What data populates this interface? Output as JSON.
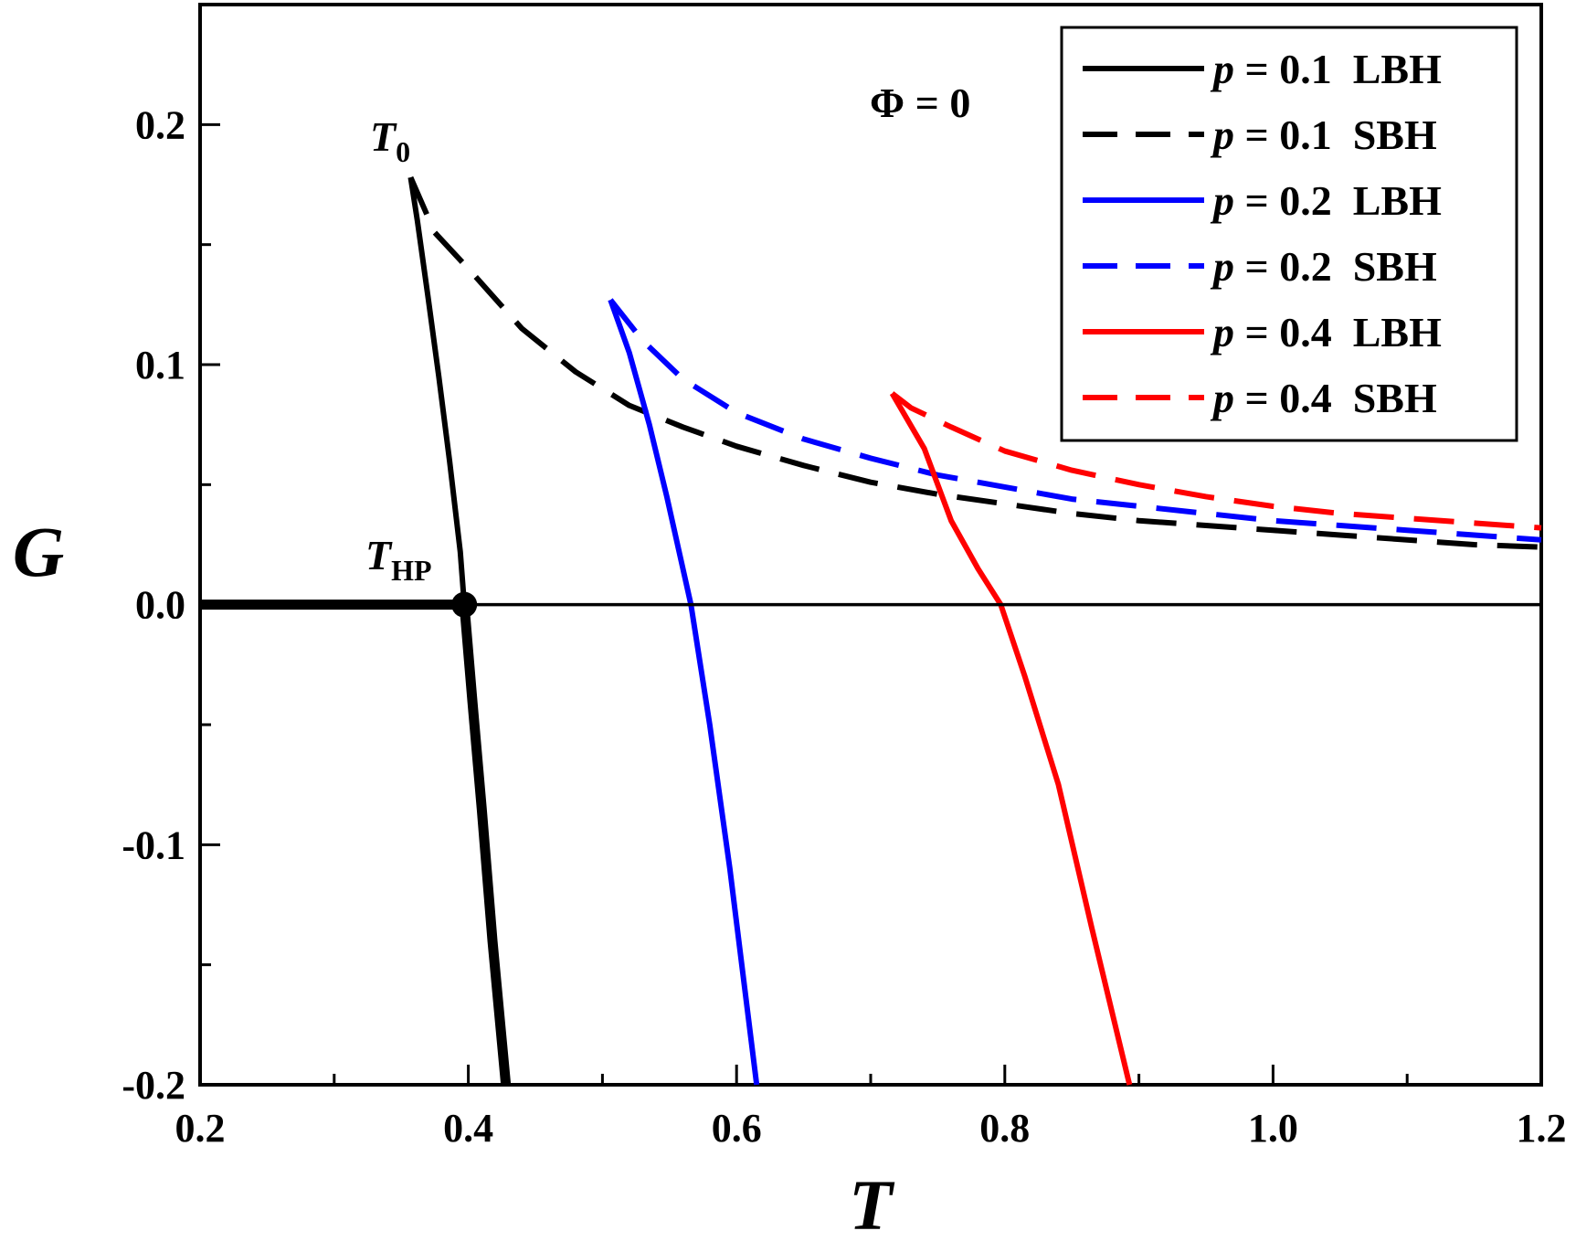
{
  "chart_data": {
    "type": "line",
    "xlabel": "T",
    "ylabel": "G",
    "xlim": [
      0.2,
      1.2
    ],
    "ylim": [
      -0.2,
      0.25
    ],
    "x_ticks": [
      "0.2",
      "0.4",
      "0.6",
      "0.8",
      "1.0",
      "1.2"
    ],
    "x_tick_values": [
      0.2,
      0.4,
      0.6,
      0.8,
      1.0,
      1.2
    ],
    "y_ticks": [
      "-0.2",
      "-0.1",
      "0.0",
      "0.1",
      "0.2"
    ],
    "y_tick_values": [
      -0.2,
      -0.1,
      0.0,
      0.1,
      0.2
    ],
    "grid": false,
    "legend_position": "top-right",
    "annotations": [
      {
        "id": "phi",
        "text": "Φ = 0"
      },
      {
        "id": "t0",
        "main": "T",
        "sub": "0",
        "x": 0.357,
        "y": 0.178
      },
      {
        "id": "thp",
        "main": "T",
        "sub": "HP",
        "x": 0.397,
        "y": 0.0
      }
    ],
    "series": [
      {
        "name": "p = 0.1  LBH",
        "p": "p",
        "label_rest": " = 0.1  LBH",
        "color": "#000000",
        "dash": "solid",
        "x": [
          0.357,
          0.362,
          0.37,
          0.378,
          0.386,
          0.394,
          0.397,
          0.403,
          0.41,
          0.418,
          0.428
        ],
        "y": [
          0.178,
          0.16,
          0.128,
          0.095,
          0.06,
          0.022,
          0.0,
          -0.04,
          -0.085,
          -0.14,
          -0.2
        ]
      },
      {
        "name": "p = 0.1  SBH",
        "p": "p",
        "label_rest": " = 0.1  SBH",
        "color": "#000000",
        "dash": "dashed",
        "x": [
          0.357,
          0.375,
          0.4,
          0.44,
          0.48,
          0.52,
          0.56,
          0.6,
          0.65,
          0.7,
          0.75,
          0.8,
          0.85,
          0.9,
          0.95,
          1.0,
          1.05,
          1.1,
          1.15,
          1.2
        ],
        "y": [
          0.178,
          0.155,
          0.14,
          0.115,
          0.097,
          0.083,
          0.074,
          0.066,
          0.058,
          0.051,
          0.046,
          0.042,
          0.038,
          0.035,
          0.033,
          0.031,
          0.029,
          0.027,
          0.025,
          0.024
        ]
      },
      {
        "name": "p = 0.2  LBH",
        "p": "p",
        "label_rest": " = 0.2  LBH",
        "color": "#0000ff",
        "dash": "solid",
        "x": [
          0.506,
          0.52,
          0.535,
          0.548,
          0.558,
          0.566,
          0.58,
          0.595,
          0.615
        ],
        "y": [
          0.127,
          0.105,
          0.075,
          0.045,
          0.02,
          0.0,
          -0.05,
          -0.11,
          -0.2
        ]
      },
      {
        "name": "p = 0.2  SBH",
        "p": "p",
        "label_rest": " = 0.2  SBH",
        "color": "#0000ff",
        "dash": "dashed",
        "x": [
          0.506,
          0.53,
          0.56,
          0.6,
          0.65,
          0.7,
          0.75,
          0.8,
          0.85,
          0.9,
          0.95,
          1.0,
          1.05,
          1.1,
          1.15,
          1.2
        ],
        "y": [
          0.127,
          0.11,
          0.094,
          0.08,
          0.069,
          0.061,
          0.054,
          0.049,
          0.044,
          0.041,
          0.038,
          0.035,
          0.033,
          0.031,
          0.029,
          0.027
        ]
      },
      {
        "name": "p = 0.4  LBH",
        "p": "p",
        "label_rest": " = 0.4  LBH",
        "color": "#ff0000",
        "dash": "solid",
        "x": [
          0.716,
          0.74,
          0.76,
          0.78,
          0.797,
          0.815,
          0.84,
          0.865,
          0.893
        ],
        "y": [
          0.088,
          0.065,
          0.035,
          0.015,
          0.0,
          -0.03,
          -0.075,
          -0.135,
          -0.2
        ]
      },
      {
        "name": "p = 0.4  SBH",
        "p": "p",
        "label_rest": " = 0.4  SBH",
        "color": "#ff0000",
        "dash": "dashed",
        "x": [
          0.716,
          0.73,
          0.76,
          0.8,
          0.85,
          0.9,
          0.95,
          1.0,
          1.05,
          1.1,
          1.15,
          1.2
        ],
        "y": [
          0.088,
          0.082,
          0.074,
          0.064,
          0.056,
          0.05,
          0.045,
          0.041,
          0.038,
          0.036,
          0.034,
          0.032
        ]
      }
    ],
    "reference_lines": [
      {
        "type": "horizontal",
        "y": 0.0,
        "color": "#000000"
      },
      {
        "type": "thick-segment",
        "x": [
          0.2,
          0.397
        ],
        "y": [
          0.0,
          0.0
        ],
        "color": "#000000"
      },
      {
        "type": "thick-segment",
        "x": [
          0.397,
          0.403,
          0.41,
          0.418,
          0.428
        ],
        "y": [
          0.0,
          -0.04,
          -0.085,
          -0.14,
          -0.2
        ],
        "color": "#000000"
      }
    ]
  }
}
